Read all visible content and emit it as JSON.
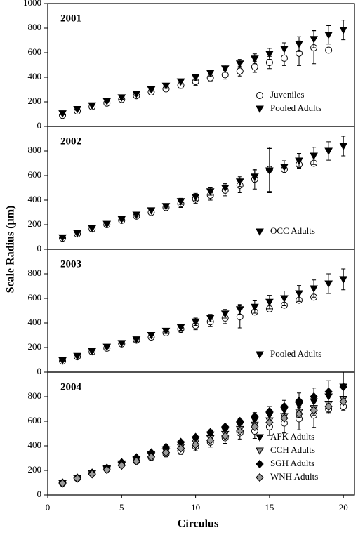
{
  "ylabel": "Scale Radius (µm)",
  "xlabel": "Circulus",
  "chart_data": [
    {
      "type": "scatter",
      "title": "2001",
      "xlim": [
        0,
        20.75
      ],
      "ylim": [
        0,
        1000
      ],
      "yticks": [
        0,
        200,
        400,
        600,
        800,
        1000
      ],
      "legend": "lower right",
      "series": [
        {
          "name": "Juveniles",
          "marker": "circle",
          "color": "#ffffff",
          "x": [
            1,
            2,
            3,
            4,
            5,
            6,
            7,
            8,
            9,
            10,
            11,
            12,
            13,
            14,
            15,
            16,
            17,
            18,
            19
          ],
          "values": [
            90,
            125,
            160,
            190,
            220,
            250,
            280,
            305,
            335,
            365,
            395,
            420,
            450,
            485,
            520,
            555,
            595,
            640,
            620
          ],
          "errors": [
            10,
            10,
            12,
            15,
            15,
            18,
            20,
            20,
            25,
            30,
            30,
            35,
            40,
            45,
            50,
            60,
            100,
            130,
            null
          ]
        },
        {
          "name": "Pooled Adults",
          "marker": "triangle",
          "color": "#000000",
          "x": [
            1,
            2,
            3,
            4,
            5,
            6,
            7,
            8,
            9,
            10,
            11,
            12,
            13,
            14,
            15,
            16,
            17,
            18,
            19,
            20
          ],
          "values": [
            105,
            140,
            170,
            205,
            235,
            265,
            300,
            330,
            365,
            400,
            435,
            470,
            510,
            550,
            590,
            630,
            670,
            710,
            745,
            785
          ],
          "errors": [
            10,
            10,
            12,
            12,
            15,
            15,
            15,
            20,
            20,
            25,
            25,
            30,
            35,
            40,
            45,
            50,
            60,
            70,
            75,
            80
          ]
        }
      ]
    },
    {
      "type": "scatter",
      "title": "2002",
      "xlim": [
        0,
        20.75
      ],
      "ylim": [
        0,
        1000
      ],
      "yticks": [
        0,
        200,
        400,
        600,
        800
      ],
      "legend": "lower right",
      "series": [
        {
          "marker": "circle",
          "color": "#ffffff",
          "x": [
            1,
            2,
            3,
            4,
            5,
            6,
            7,
            8,
            9,
            10,
            11,
            12,
            13,
            14,
            15,
            16,
            17,
            18
          ],
          "values": [
            90,
            125,
            165,
            200,
            235,
            270,
            300,
            340,
            370,
            410,
            440,
            480,
            520,
            570,
            650,
            650,
            690,
            700
          ],
          "errors": [
            10,
            10,
            12,
            15,
            15,
            18,
            20,
            25,
            30,
            35,
            40,
            45,
            60,
            80,
            180,
            30,
            25,
            20
          ]
        },
        {
          "name": "OCC Adults",
          "marker": "triangle",
          "color": "#000000",
          "x": [
            1,
            2,
            3,
            4,
            5,
            6,
            7,
            8,
            9,
            10,
            11,
            12,
            13,
            14,
            15,
            16,
            17,
            18,
            19,
            20
          ],
          "values": [
            95,
            130,
            170,
            205,
            245,
            280,
            315,
            350,
            390,
            425,
            470,
            500,
            550,
            590,
            640,
            670,
            720,
            760,
            800,
            840
          ],
          "errors": [
            10,
            10,
            12,
            12,
            15,
            15,
            20,
            20,
            25,
            30,
            30,
            35,
            40,
            50,
            180,
            50,
            60,
            70,
            75,
            80
          ]
        }
      ]
    },
    {
      "type": "scatter",
      "title": "2003",
      "xlim": [
        0,
        20.75
      ],
      "ylim": [
        0,
        1000
      ],
      "yticks": [
        0,
        200,
        400,
        600,
        800
      ],
      "legend": "lower right",
      "series": [
        {
          "marker": "circle",
          "color": "#ffffff",
          "x": [
            1,
            2,
            3,
            4,
            5,
            6,
            7,
            8,
            9,
            10,
            11,
            12,
            13,
            14,
            15,
            16,
            17,
            18
          ],
          "values": [
            90,
            125,
            165,
            195,
            230,
            260,
            285,
            320,
            350,
            380,
            410,
            440,
            450,
            490,
            515,
            545,
            585,
            610
          ],
          "errors": [
            10,
            10,
            12,
            15,
            15,
            18,
            20,
            25,
            30,
            35,
            40,
            45,
            90,
            20,
            20,
            20,
            20,
            20
          ]
        },
        {
          "name": "Pooled Adults",
          "marker": "triangle",
          "color": "#000000",
          "x": [
            1,
            2,
            3,
            4,
            5,
            6,
            7,
            8,
            9,
            10,
            11,
            12,
            13,
            14,
            15,
            16,
            17,
            18,
            19,
            20
          ],
          "values": [
            95,
            130,
            170,
            205,
            235,
            265,
            300,
            335,
            365,
            410,
            440,
            475,
            510,
            530,
            570,
            600,
            640,
            680,
            720,
            755
          ],
          "errors": [
            10,
            10,
            12,
            12,
            15,
            15,
            20,
            20,
            25,
            30,
            30,
            35,
            40,
            50,
            55,
            60,
            65,
            70,
            80,
            85
          ]
        }
      ]
    },
    {
      "type": "scatter",
      "title": "2004",
      "xlim": [
        0,
        20.75
      ],
      "ylim": [
        0,
        1000
      ],
      "yticks": [
        0,
        200,
        400,
        600,
        800
      ],
      "xticks": [
        0,
        5,
        10,
        15,
        20
      ],
      "legend": "lower right",
      "series": [
        {
          "marker": "circle",
          "color": "#ffffff",
          "x": [
            1,
            2,
            3,
            4,
            5,
            6,
            7,
            8,
            9,
            10,
            11,
            12,
            13,
            14,
            15,
            16,
            17,
            18,
            19,
            20
          ],
          "values": [
            95,
            135,
            175,
            210,
            245,
            275,
            305,
            335,
            360,
            395,
            430,
            465,
            505,
            520,
            555,
            585,
            620,
            650,
            700,
            720
          ],
          "errors": [
            10,
            10,
            12,
            15,
            15,
            18,
            20,
            25,
            30,
            35,
            40,
            45,
            50,
            60,
            70,
            80,
            90,
            100,
            40,
            30
          ]
        },
        {
          "name": "AFK Adults",
          "marker": "triangle",
          "color": "#000000",
          "x": [
            1,
            2,
            3,
            4,
            5,
            6,
            7,
            8,
            9,
            10,
            11,
            12,
            13,
            14,
            15,
            16,
            17,
            18,
            19,
            20
          ],
          "values": [
            100,
            140,
            180,
            215,
            255,
            290,
            330,
            370,
            410,
            450,
            490,
            525,
            570,
            610,
            650,
            690,
            730,
            760,
            800,
            880
          ],
          "errors": [
            10,
            10,
            12,
            15,
            15,
            20,
            20,
            25,
            30,
            35,
            40,
            45,
            50,
            60,
            70,
            80,
            100,
            110,
            130,
            120
          ]
        },
        {
          "name": "CCH Adults",
          "marker": "triangle",
          "color": "#9a9a9a",
          "x": [
            1,
            2,
            3,
            4,
            5,
            6,
            7,
            8,
            9,
            10,
            11,
            12,
            13,
            14,
            15,
            16,
            17,
            18,
            19,
            20
          ],
          "values": [
            95,
            135,
            175,
            210,
            245,
            285,
            320,
            355,
            390,
            425,
            460,
            495,
            535,
            570,
            605,
            640,
            675,
            705,
            740,
            780
          ]
        },
        {
          "name": "SGH Adults",
          "marker": "diamond",
          "color": "#000000",
          "x": [
            1,
            2,
            3,
            4,
            5,
            6,
            7,
            8,
            9,
            10,
            11,
            12,
            13,
            14,
            15,
            16,
            17,
            18,
            19,
            20
          ],
          "values": [
            100,
            140,
            180,
            220,
            265,
            305,
            345,
            390,
            430,
            470,
            510,
            555,
            600,
            640,
            680,
            720,
            765,
            800,
            840,
            880
          ]
        },
        {
          "name": "WNH Adults",
          "marker": "diamond",
          "color": "#9a9a9a",
          "x": [
            1,
            2,
            3,
            4,
            5,
            6,
            7,
            8,
            9,
            10,
            11,
            12,
            13,
            14,
            15,
            16,
            17,
            18,
            19,
            20
          ],
          "values": [
            95,
            135,
            170,
            205,
            240,
            275,
            310,
            345,
            380,
            410,
            445,
            480,
            520,
            555,
            590,
            625,
            660,
            690,
            720,
            760
          ]
        }
      ]
    }
  ]
}
